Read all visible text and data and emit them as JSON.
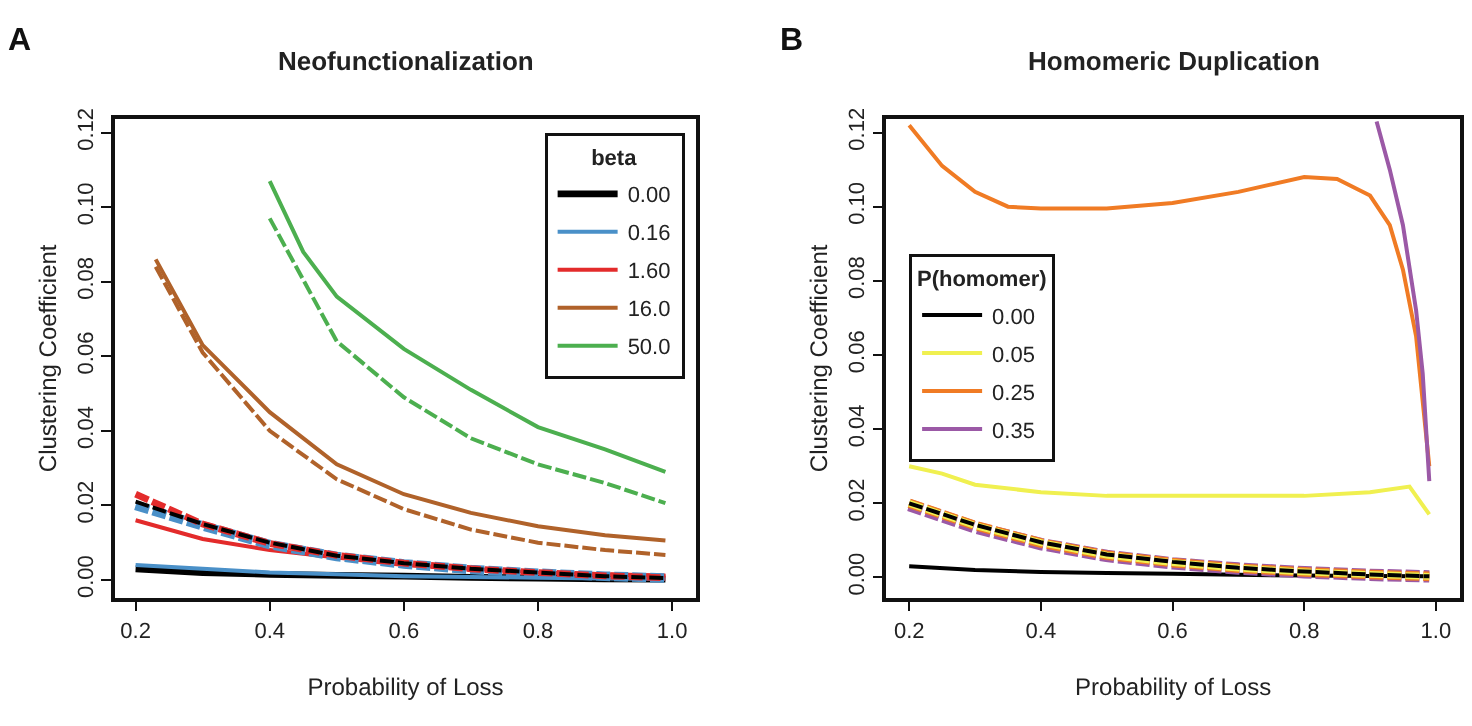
{
  "chart_data": [
    {
      "type": "line",
      "title": "Neofunctionalization",
      "xlabel": "Probability of Loss",
      "ylabel": "Clustering Coefficient",
      "annotations": [
        "A"
      ],
      "xlim": [
        0.169,
        1.036
      ],
      "ylim": [
        -0.0048,
        0.1237
      ],
      "xticks": [
        0.2,
        0.4,
        0.6,
        0.8,
        {
          "value": 1.0,
          "label": "1.0"
        }
      ],
      "yticks": [
        {
          "value": 0,
          "label": "0.00"
        },
        {
          "value": 0.02,
          "label": "0.02"
        },
        {
          "value": 0.04,
          "label": "0.04"
        },
        {
          "value": 0.06,
          "label": "0.06"
        },
        {
          "value": 0.08,
          "label": "0.08"
        },
        {
          "value": 0.1,
          "label": "0.10"
        },
        {
          "value": 0.12,
          "label": "0.12"
        }
      ],
      "legend": "top right",
      "legend_title": "beta",
      "line_style": "solid",
      "x": [
        0.2,
        0.3,
        0.4,
        0.5,
        0.6,
        0.7,
        0.8,
        0.9,
        0.99
      ],
      "series": [
        {
          "name": "0.00",
          "color": "#000000",
          "values": [
            0.003,
            0.002,
            0.0015,
            0.0012,
            0.001,
            0.0007,
            0.0005,
            0.0003,
            0.0002
          ]
        },
        {
          "name": "0.16",
          "color": "#4a90c8",
          "values": [
            0.004,
            0.003,
            0.002,
            0.0015,
            0.001,
            0.0008,
            0.0006,
            0.0004,
            0.0003
          ]
        },
        {
          "name": "1.60",
          "color": "#e32b2b",
          "values": [
            0.016,
            0.011,
            0.008,
            0.006,
            0.004,
            0.003,
            0.002,
            0.0015,
            0.0012
          ]
        },
        {
          "name": "16.0",
          "color": "#b0622a",
          "x": [
            0.23,
            0.3,
            0.4,
            0.5,
            0.6,
            0.7,
            0.8,
            0.9,
            0.99
          ],
          "values": [
            0.086,
            0.063,
            0.045,
            0.031,
            0.023,
            0.018,
            0.0144,
            0.012,
            0.0106
          ]
        },
        {
          "name": "50.0",
          "color": "#4caf4f",
          "x": [
            0.4,
            0.45,
            0.5,
            0.6,
            0.7,
            0.8,
            0.9,
            0.99
          ],
          "values": [
            0.107,
            0.088,
            0.076,
            0.062,
            0.051,
            0.041,
            0.035,
            0.029
          ]
        },
        {
          "color": "#4a90c8",
          "line_style": "dashed",
          "values": [
            0.02,
            0.0145,
            0.0095,
            0.0063,
            0.0043,
            0.0028,
            0.0018,
            0.001,
            0.0005
          ]
        },
        {
          "color": "#e32b2b",
          "line_style": "dashed",
          "values": [
            0.023,
            0.015,
            0.0098,
            0.0066,
            0.0045,
            0.003,
            0.002,
            0.0011,
            0.0006
          ]
        },
        {
          "color": "#000000",
          "line_style": "dashed",
          "values": [
            0.021,
            0.015,
            0.01,
            0.0065,
            0.0045,
            0.003,
            0.002,
            0.001,
            0.0005
          ]
        },
        {
          "color": "#b0622a",
          "line_style": "dashed",
          "x": [
            0.23,
            0.3,
            0.4,
            0.5,
            0.6,
            0.7,
            0.8,
            0.9,
            0.99
          ],
          "values": [
            0.084,
            0.061,
            0.04,
            0.027,
            0.019,
            0.0135,
            0.01,
            0.008,
            0.0067
          ]
        },
        {
          "color": "#4caf4f",
          "line_style": "dashed",
          "x": [
            0.4,
            0.5,
            0.6,
            0.7,
            0.8,
            0.9,
            0.99
          ],
          "values": [
            0.097,
            0.064,
            0.049,
            0.038,
            0.031,
            0.026,
            0.0206
          ]
        }
      ]
    },
    {
      "type": "line",
      "title": "Homomeric Duplication",
      "xlabel": "Probability of Loss",
      "ylabel": "Clustering Coefficient",
      "annotations": [
        "B"
      ],
      "xlim": [
        0.165,
        1.037
      ],
      "ylim": [
        -0.0055,
        0.1237
      ],
      "xticks": [
        0.2,
        0.4,
        0.6,
        0.8,
        {
          "value": 1.0,
          "label": "1.0"
        }
      ],
      "yticks": [
        {
          "value": 0,
          "label": "0.00"
        },
        {
          "value": 0.02,
          "label": "0.02"
        },
        {
          "value": 0.04,
          "label": "0.04"
        },
        {
          "value": 0.06,
          "label": "0.06"
        },
        {
          "value": 0.08,
          "label": "0.08"
        },
        {
          "value": 0.1,
          "label": "0.10"
        },
        {
          "value": 0.12,
          "label": "0.12"
        }
      ],
      "legend": "left",
      "legend_title": "P(homomer)",
      "line_style": "solid",
      "x": [
        0.2,
        0.3,
        0.4,
        0.5,
        0.6,
        0.7,
        0.8,
        0.9,
        0.99
      ],
      "series": [
        {
          "name": "0.00",
          "color": "#000000",
          "values": [
            0.003,
            0.002,
            0.0015,
            0.0012,
            0.001,
            0.0007,
            0.0005,
            0.0004,
            0.0003
          ]
        },
        {
          "name": "0.05",
          "color": "#f0f050",
          "x": [
            0.2,
            0.25,
            0.3,
            0.4,
            0.5,
            0.6,
            0.7,
            0.8,
            0.9,
            0.96,
            0.99
          ],
          "values": [
            0.03,
            0.028,
            0.025,
            0.023,
            0.022,
            0.022,
            0.022,
            0.022,
            0.023,
            0.0245,
            0.017
          ]
        },
        {
          "name": "0.25",
          "color": "#f07b24",
          "x": [
            0.2,
            0.25,
            0.3,
            0.35,
            0.4,
            0.5,
            0.6,
            0.7,
            0.8,
            0.85,
            0.9,
            0.93,
            0.95,
            0.97,
            0.99
          ],
          "values": [
            0.122,
            0.111,
            0.104,
            0.1,
            0.0995,
            0.0995,
            0.101,
            0.104,
            0.108,
            0.1075,
            0.103,
            0.095,
            0.083,
            0.065,
            0.03
          ]
        },
        {
          "name": "0.35",
          "color": "#9b59a6",
          "x": [
            0.91,
            0.93,
            0.95,
            0.97,
            0.98,
            0.99
          ],
          "values": [
            0.123,
            0.11,
            0.095,
            0.072,
            0.055,
            0.026
          ]
        },
        {
          "color": "#9b59a6",
          "line_style": "dashed",
          "values": [
            0.0195,
            0.0135,
            0.009,
            0.0058,
            0.0038,
            0.0024,
            0.0014,
            0.0007,
            0.0003
          ]
        },
        {
          "color": "#f07b24",
          "line_style": "dashed",
          "values": [
            0.02,
            0.014,
            0.0093,
            0.006,
            0.004,
            0.0025,
            0.0015,
            0.0008,
            0.0003
          ]
        },
        {
          "color": "#f0f050",
          "line_style": "dashed",
          "values": [
            0.02,
            0.014,
            0.0094,
            0.006,
            0.004,
            0.0025,
            0.0015,
            0.0008,
            0.0003
          ]
        },
        {
          "color": "#000000",
          "line_style": "dashed",
          "values": [
            0.02,
            0.0142,
            0.0095,
            0.0062,
            0.0042,
            0.0026,
            0.0016,
            0.0008,
            0.0003
          ]
        }
      ]
    }
  ]
}
